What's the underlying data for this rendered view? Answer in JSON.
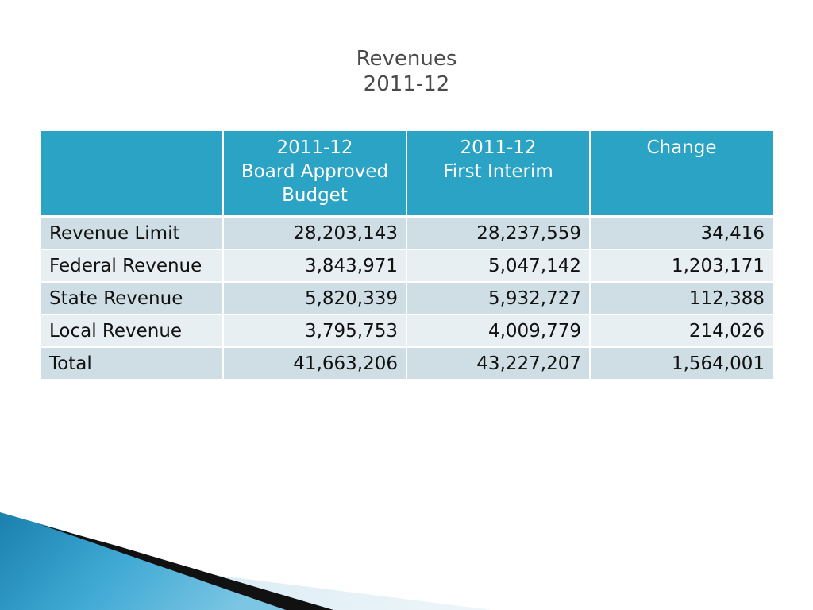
{
  "slide": {
    "title_line1": "Revenues",
    "title_line2": "2011-12"
  },
  "table": {
    "headers": [
      [],
      [
        "2011-12",
        "Board Approved",
        "Budget"
      ],
      [
        "2011-12",
        "First Interim"
      ],
      [
        "Change"
      ]
    ],
    "rows": [
      [
        "Revenue Limit",
        "28,203,143",
        "28,237,559",
        "34,416"
      ],
      [
        "Federal Revenue",
        "3,843,971",
        "5,047,142",
        "1,203,171"
      ],
      [
        "State Revenue",
        "5,820,339",
        "5,932,727",
        "112,388"
      ],
      [
        "Local Revenue",
        "3,795,753",
        "4,009,779",
        "214,026"
      ],
      [
        "Total",
        "41,663,206",
        "43,227,207",
        "1,564,001"
      ]
    ]
  },
  "colors": {
    "header_fill": "#2aa3c4",
    "row_fill_dark": "#cfdde5",
    "row_fill_light": "#e8eff3",
    "title_text": "#4a4a4a",
    "deco_blue": "#1f8bb5"
  }
}
